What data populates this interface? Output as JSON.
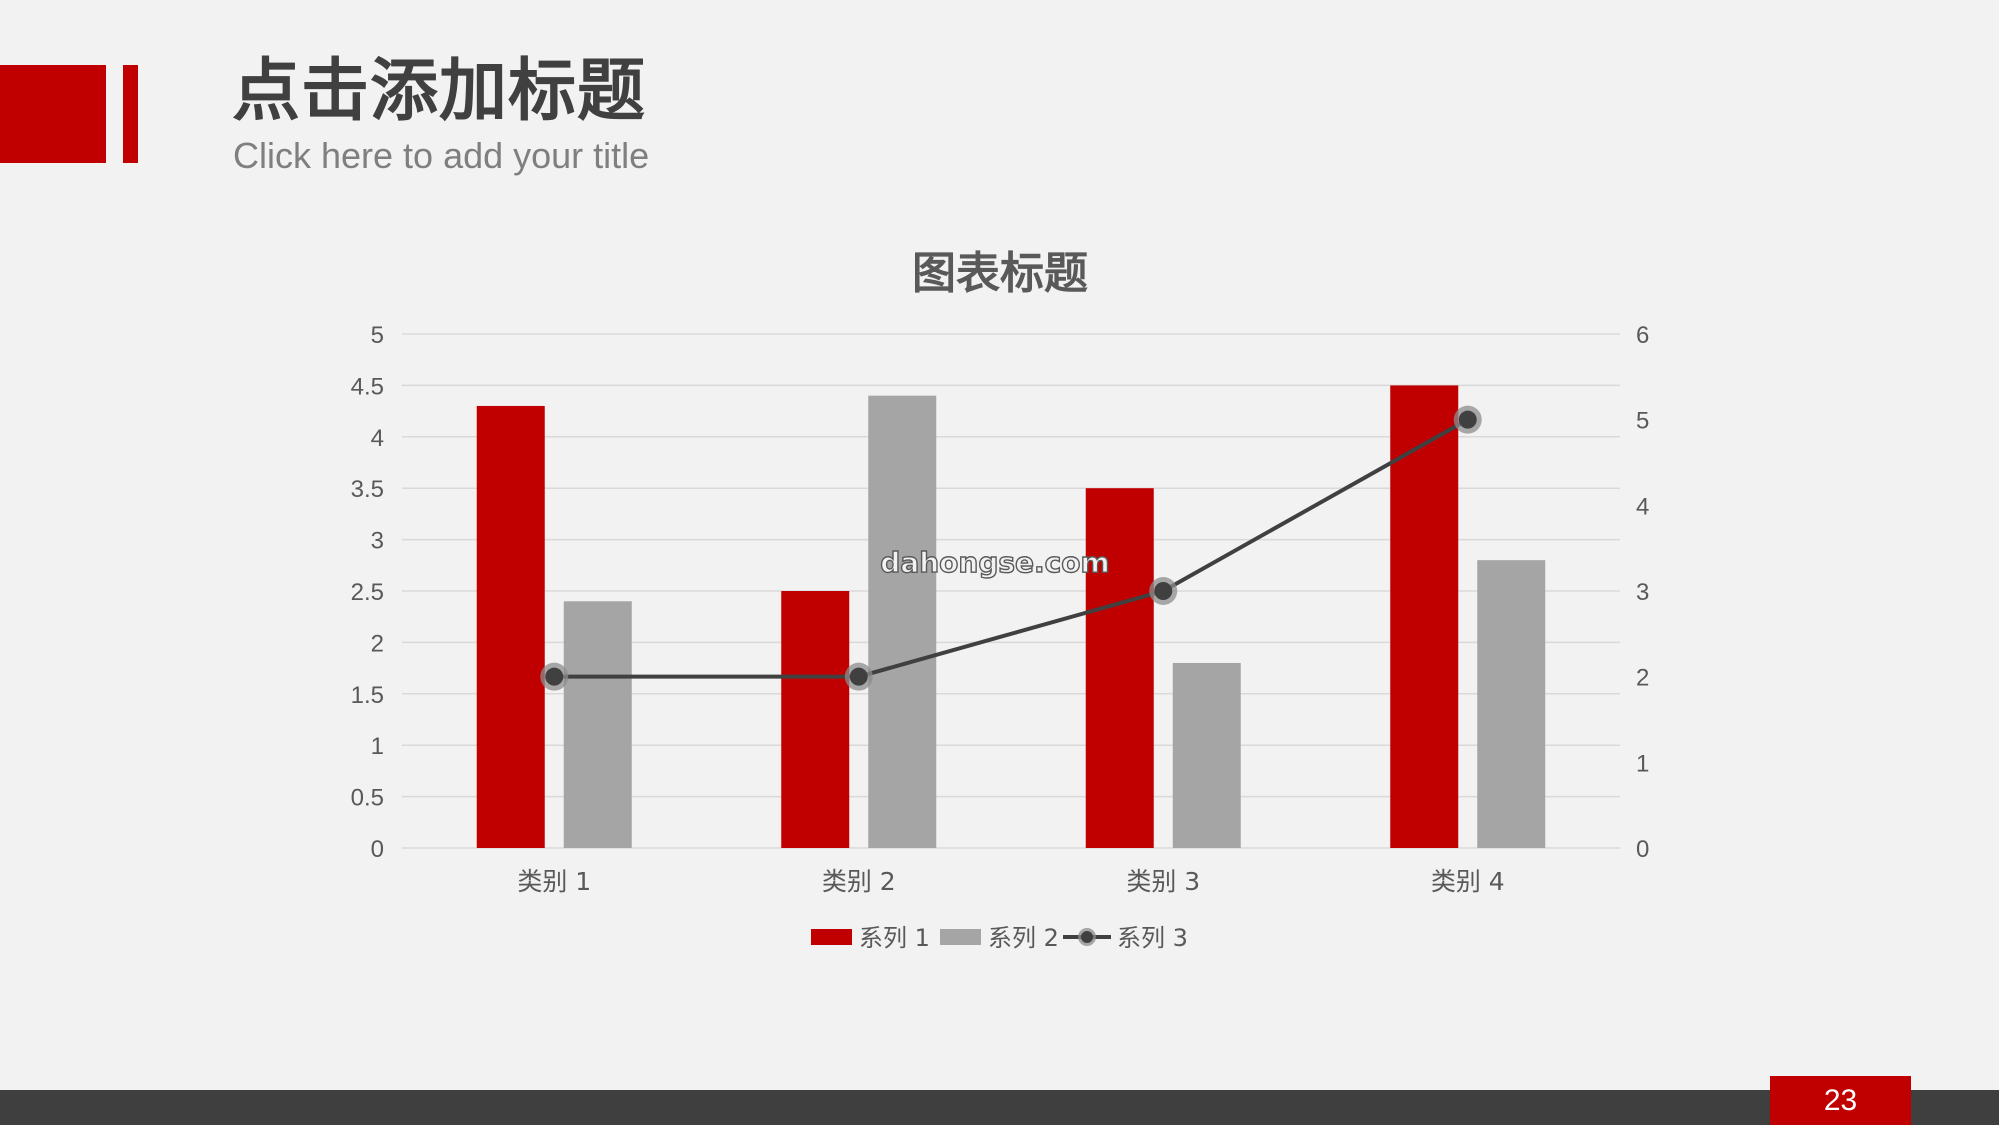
{
  "slide": {
    "title_cn": "点击添加标题",
    "title_en": "Click here to add your title",
    "page_number": "23",
    "watermark": "dahongse.com"
  },
  "colors": {
    "accent": "#c00000",
    "series2": "#a5a5a5",
    "series3": "#404040",
    "footer": "#3f3f3f",
    "text": "#595959"
  },
  "chart_data": {
    "type": "bar",
    "title": "图表标题",
    "categories": [
      "类别 1",
      "类别 2",
      "类别 3",
      "类别 4"
    ],
    "series": [
      {
        "name": "系列 1",
        "type": "bar",
        "axis": "left",
        "color": "#c00000",
        "values": [
          4.3,
          2.5,
          3.5,
          4.5
        ]
      },
      {
        "name": "系列 2",
        "type": "bar",
        "axis": "left",
        "color": "#a5a5a5",
        "values": [
          2.4,
          4.4,
          1.8,
          2.8
        ]
      },
      {
        "name": "系列 3",
        "type": "line",
        "axis": "right",
        "color": "#404040",
        "values": [
          2,
          2,
          3,
          5
        ]
      }
    ],
    "ylim": [
      0,
      5
    ],
    "y_ticks": [
      "0",
      "0.5",
      "1",
      "1.5",
      "2",
      "2.5",
      "3",
      "3.5",
      "4",
      "4.5",
      "5"
    ],
    "y2lim": [
      0,
      6
    ],
    "y2_ticks": [
      "0",
      "1",
      "2",
      "3",
      "4",
      "5",
      "6"
    ],
    "grid": true,
    "legend": "bottom"
  }
}
